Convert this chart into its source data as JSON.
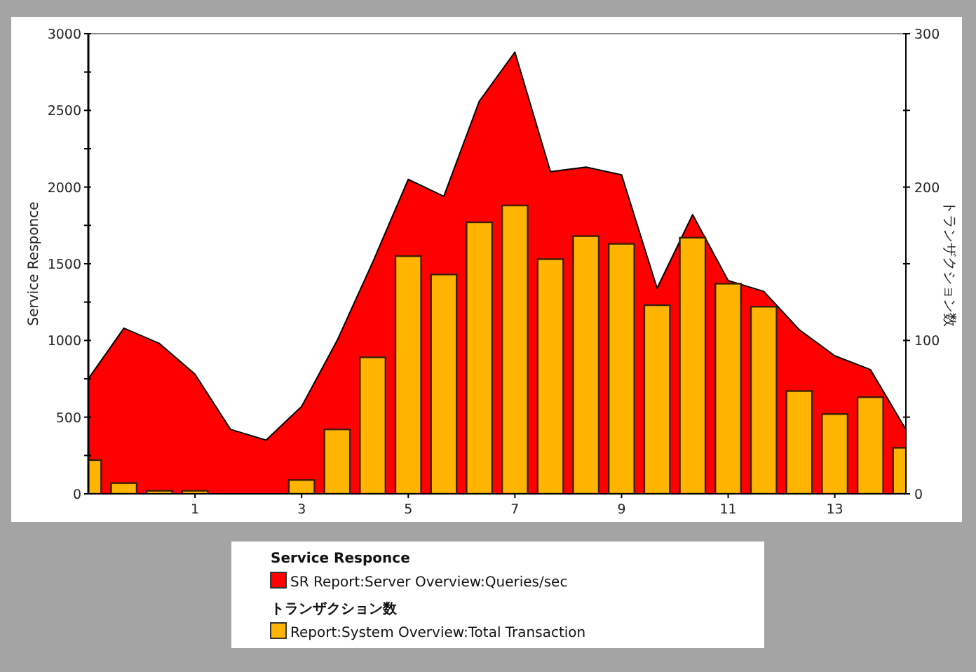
{
  "chart_data": {
    "type": "bar",
    "ylabel": "Service Responce",
    "y2label": "トランザクション数",
    "x": [
      -1,
      -0.333,
      0.333,
      1,
      1.667,
      2.333,
      3,
      3.667,
      4.333,
      5,
      5.667,
      6.333,
      7,
      7.667,
      8.333,
      9,
      9.667,
      10.333,
      11,
      11.667,
      12.333,
      13,
      13.667,
      14.333
    ],
    "series": [
      {
        "name": "SR Report:Server Overview:Queries/sec",
        "type": "area",
        "color": "#ff0000",
        "values": [
          750,
          1080,
          980,
          780,
          420,
          350,
          570,
          1000,
          1510,
          2050,
          1940,
          2560,
          2880,
          2100,
          2130,
          2080,
          1340,
          1820,
          1390,
          1320,
          1070,
          900,
          810,
          420
        ]
      },
      {
        "name": "Report:System Overview:Total Transaction",
        "axis": "y2",
        "color": "#ffb400",
        "values": [
          22,
          7,
          2,
          2,
          0,
          0,
          9,
          42,
          89,
          155,
          143,
          177,
          188,
          153,
          168,
          163,
          123,
          167,
          137,
          122,
          67,
          52,
          63,
          30
        ]
      }
    ],
    "xlim": [
      -1,
      14.333
    ],
    "xticks": [
      1,
      3,
      5,
      7,
      9,
      11,
      13
    ],
    "ylim": [
      0,
      3000
    ],
    "yticks": [
      0,
      {
        "value": 250,
        "label": null
      },
      500,
      {
        "value": 750,
        "label": null
      },
      1000,
      {
        "value": 1250,
        "label": null
      },
      1500,
      {
        "value": 1750,
        "label": null
      },
      2000,
      {
        "value": 2250,
        "label": null
      },
      2500,
      {
        "value": 2750,
        "label": null
      },
      3000
    ],
    "y2lim": [
      0,
      300
    ],
    "y2ticks": [
      0,
      {
        "value": 50,
        "label": null
      },
      100,
      {
        "value": 150,
        "label": null
      },
      200,
      {
        "value": 250,
        "label": null
      },
      300
    ],
    "grid": false,
    "legend": "bottom"
  }
}
